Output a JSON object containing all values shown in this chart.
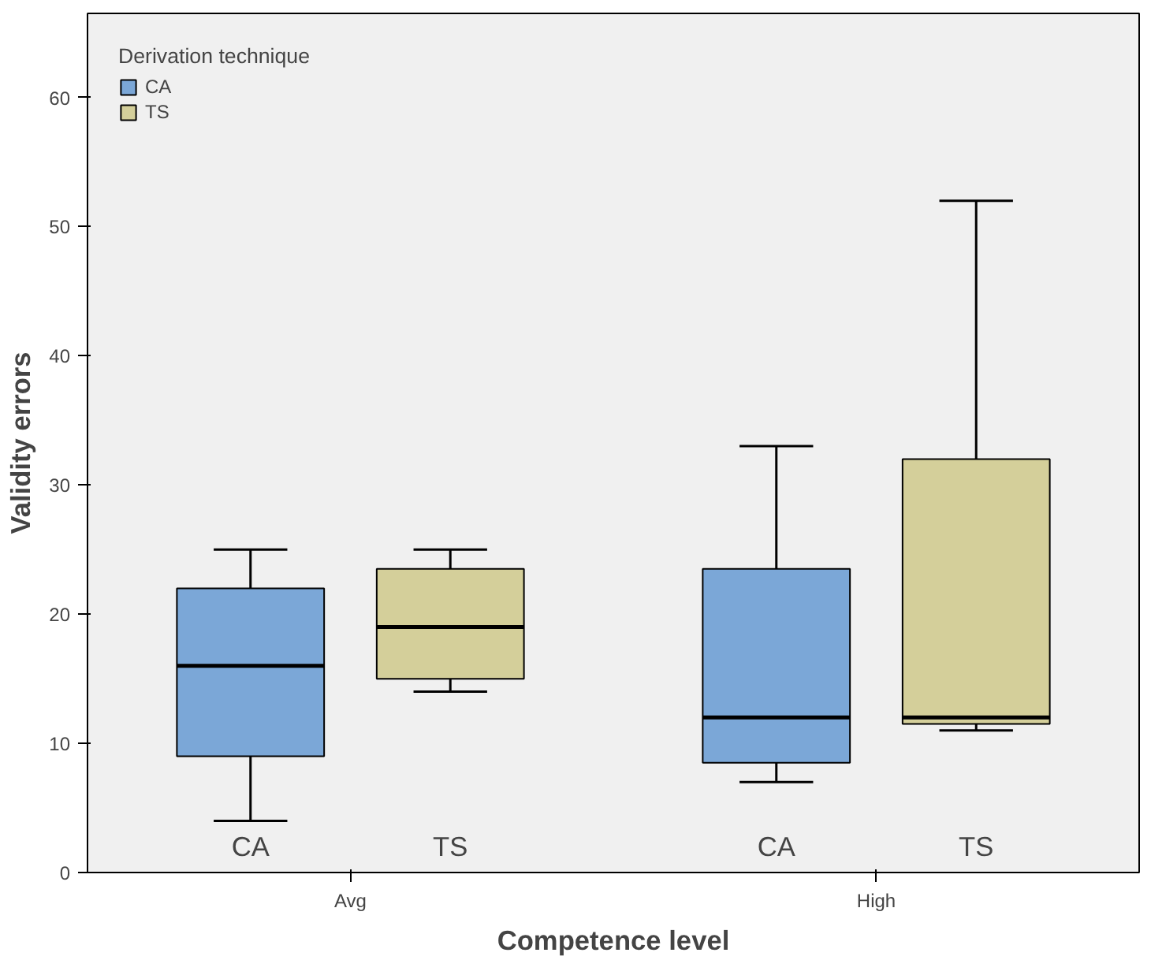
{
  "chart_data": {
    "type": "box",
    "xlabel": "Competence level",
    "ylabel": "Validity errors",
    "legend_title": "Derivation technique",
    "categories": [
      "Avg",
      "High"
    ],
    "series": [
      {
        "name": "CA",
        "color": "#7ba7d7",
        "boxes": [
          {
            "low": 4,
            "q1": 9,
            "median": 16,
            "q3": 22,
            "high": 25
          },
          {
            "low": 7,
            "q1": 8.5,
            "median": 12,
            "q3": 23.5,
            "high": 33
          }
        ]
      },
      {
        "name": "TS",
        "color": "#d4cf9a",
        "boxes": [
          {
            "low": 14,
            "q1": 15,
            "median": 19,
            "q3": 23.5,
            "high": 25
          },
          {
            "low": 11,
            "q1": 11.5,
            "median": 12,
            "q3": 32,
            "high": 52
          }
        ]
      }
    ],
    "annotations": [
      "CA",
      "TS",
      "CA",
      "TS"
    ],
    "ylim": [
      0,
      66.5
    ],
    "yticks": [
      0,
      10,
      20,
      30,
      40,
      50,
      60
    ],
    "grid": false,
    "legend": "top left"
  }
}
